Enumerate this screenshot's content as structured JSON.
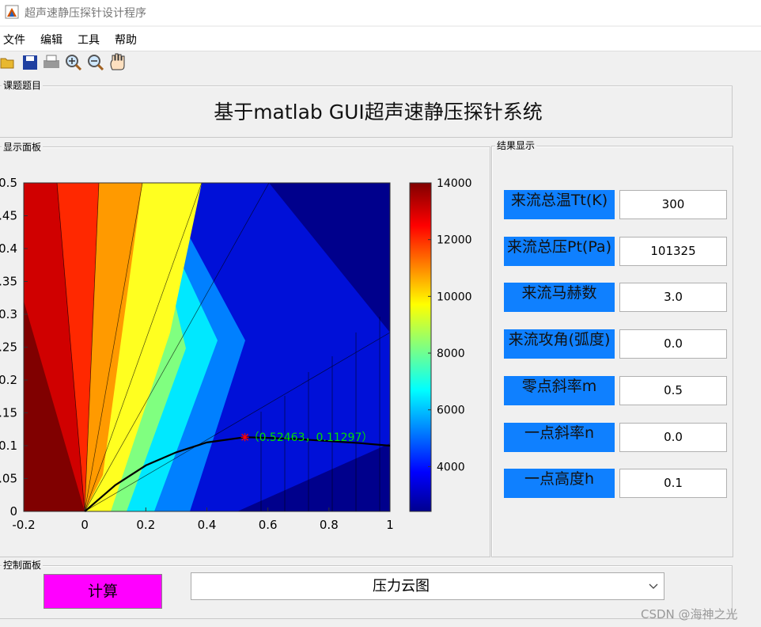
{
  "window": {
    "title": "超声速静压探针设计程序"
  },
  "menu": [
    "文件",
    "编辑",
    "工具",
    "帮助"
  ],
  "topic_panel": {
    "label": "课题题目",
    "heading": "基于matlab GUI超声速静压探针系统"
  },
  "display_panel": {
    "label": "显示面板"
  },
  "result_panel": {
    "label": "结果显示",
    "fields": [
      {
        "label": "来流总温Tt(K)",
        "value": "300"
      },
      {
        "label": "来流总压Pt(Pa)",
        "value": "101325"
      },
      {
        "label": "来流马赫数",
        "value": "3.0"
      },
      {
        "label": "来流攻角(弧度)",
        "value": "0.0"
      },
      {
        "label": "零点斜率m",
        "value": "0.5"
      },
      {
        "label": "一点斜率n",
        "value": "0.0"
      },
      {
        "label": "一点高度h",
        "value": "0.1"
      }
    ]
  },
  "control_panel": {
    "label": "控制面板",
    "button": "计算",
    "dropdown": "压力云图"
  },
  "watermark": "CSDN @海神之光",
  "chart_data": {
    "type": "contour",
    "xlim": [
      -0.2,
      1
    ],
    "ylim": [
      0,
      0.5
    ],
    "xticks": [
      -0.2,
      0,
      0.2,
      0.4,
      0.6,
      0.8,
      1
    ],
    "yticks": [
      0,
      0.05,
      0.1,
      0.15,
      0.2,
      0.25,
      0.3,
      0.35,
      0.4,
      0.45,
      0.5
    ],
    "colorbar": {
      "clim": [
        2420,
        14000
      ],
      "ticks": [
        4000,
        6000,
        8000,
        10000,
        12000,
        14000
      ],
      "colormap": "jet"
    },
    "curve": {
      "color": "#000000",
      "x": [
        0,
        0.1,
        0.2,
        0.3,
        0.4,
        0.52463,
        0.6,
        0.7,
        0.8,
        0.9,
        1
      ],
      "y": [
        0,
        0.04,
        0.07,
        0.09,
        0.105,
        0.11297,
        0.112,
        0.11,
        0.107,
        0.104,
        0.1
      ]
    },
    "marker": {
      "x": 0.52463,
      "y": 0.11297,
      "color": "#ff0000",
      "label": "（0.52463，0.11297）",
      "label_color": "#00e000"
    }
  }
}
